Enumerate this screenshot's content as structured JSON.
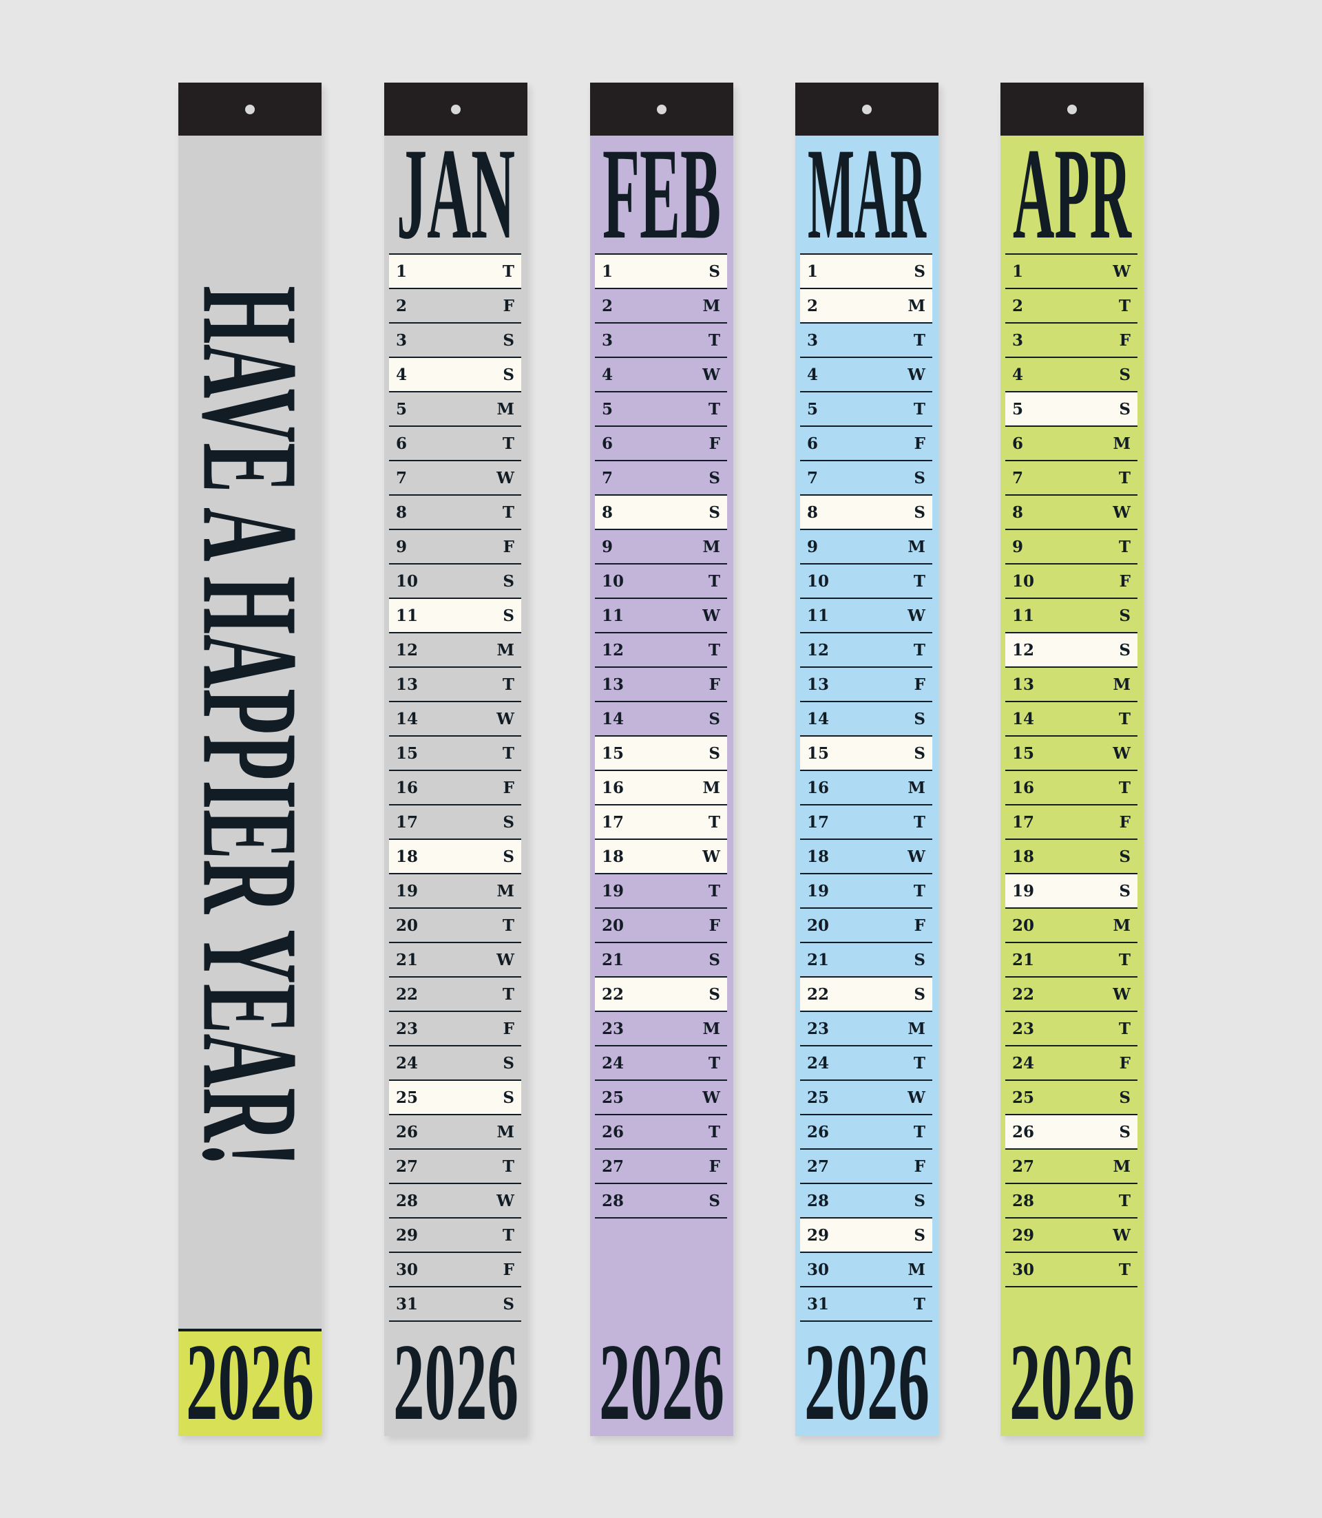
{
  "colors": {
    "background": "#e6e6e6",
    "hanger": "#231f20",
    "ink": "#121c24",
    "highlight": "#fdfaf2"
  },
  "cover": {
    "slogan": "HAVE A HAPPIER YEAR!",
    "year": "2026",
    "color": "#cfcfcf",
    "year_band_color": "#d8e055"
  },
  "months": [
    {
      "name": "JAN",
      "year": "2026",
      "color": "#cfcfcf",
      "days": [
        "T",
        "F",
        "S",
        "S",
        "M",
        "T",
        "W",
        "T",
        "F",
        "S",
        "S",
        "M",
        "T",
        "W",
        "T",
        "F",
        "S",
        "S",
        "M",
        "T",
        "W",
        "T",
        "F",
        "S",
        "S",
        "M",
        "T",
        "W",
        "T",
        "F",
        "S"
      ],
      "highlighted": [
        1,
        4,
        11,
        18,
        25
      ]
    },
    {
      "name": "FEB",
      "year": "2026",
      "color": "#c3b5da",
      "days": [
        "S",
        "M",
        "T",
        "W",
        "T",
        "F",
        "S",
        "S",
        "M",
        "T",
        "W",
        "T",
        "F",
        "S",
        "S",
        "M",
        "T",
        "W",
        "T",
        "F",
        "S",
        "S",
        "M",
        "T",
        "W",
        "T",
        "F",
        "S"
      ],
      "highlighted": [
        1,
        8,
        15,
        16,
        17,
        18,
        22
      ]
    },
    {
      "name": "MAR",
      "year": "2026",
      "color": "#aedaf3",
      "days": [
        "S",
        "M",
        "T",
        "W",
        "T",
        "F",
        "S",
        "S",
        "M",
        "T",
        "W",
        "T",
        "F",
        "S",
        "S",
        "M",
        "T",
        "W",
        "T",
        "F",
        "S",
        "S",
        "M",
        "T",
        "W",
        "T",
        "F",
        "S",
        "S",
        "M",
        "T"
      ],
      "highlighted": [
        1,
        2,
        8,
        15,
        22,
        29
      ]
    },
    {
      "name": "APR",
      "year": "2026",
      "color": "#cfdf72",
      "days": [
        "W",
        "T",
        "F",
        "S",
        "S",
        "M",
        "T",
        "W",
        "T",
        "F",
        "S",
        "S",
        "M",
        "T",
        "W",
        "T",
        "F",
        "S",
        "S",
        "M",
        "T",
        "W",
        "T",
        "F",
        "S",
        "S",
        "M",
        "T",
        "W",
        "T"
      ],
      "highlighted": [
        5,
        12,
        19,
        26
      ]
    }
  ]
}
